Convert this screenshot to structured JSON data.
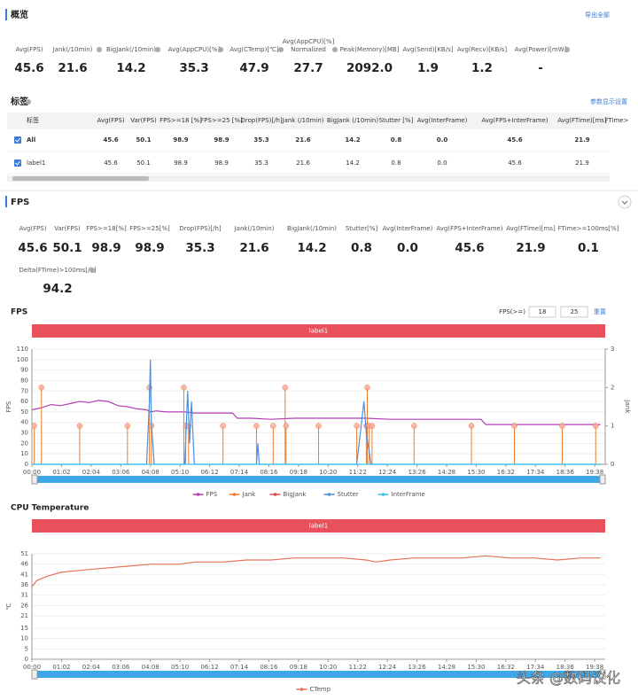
{
  "overview": {
    "title": "概览",
    "export": "导出全部",
    "metrics": [
      {
        "label": "Avg(FPS)",
        "value": "45.6"
      },
      {
        "label": "Jank(/10min)",
        "value": "21.6"
      },
      {
        "label": "BigJank(/10min)",
        "value": "14.2"
      },
      {
        "label": "Avg(AppCPU)[%]",
        "value": "35.3"
      },
      {
        "label": "Avg(CTemp)[℃]",
        "value": "47.9"
      },
      {
        "label": [
          "Avg(AppCPU)[%]",
          "Normalized"
        ],
        "value": "27.7"
      },
      {
        "label": "Peak(Memory)[MB]",
        "value": "2092.0"
      },
      {
        "label": "Avg(Send)[KB/s]",
        "value": "1.9"
      },
      {
        "label": "Avg(Recv)[KB/s]",
        "value": "1.2"
      },
      {
        "label": "Avg(Power)[mW]",
        "value": "-"
      }
    ]
  },
  "tags": {
    "title": "标签",
    "settings": "参数显示设置",
    "table": {
      "header": [
        "标签",
        "Avg(FPS)",
        "Var(FPS)",
        "FPS>=18 [%]",
        "FPS>=25 [%]",
        "Drop(FPS)[/h]",
        "Jank (/10min)",
        "BigJank (/10min)",
        "Stutter [%]",
        "Avg(InterFrame)",
        "Avg(FPS+InterFrame)",
        "Avg(FTime)[ms]",
        "FTime>"
      ],
      "rows": [
        [
          "All",
          "45.6",
          "50.1",
          "98.9",
          "98.9",
          "35.3",
          "21.6",
          "14.2",
          "0.8",
          "0.0",
          "45.6",
          "21.9"
        ],
        [
          "label1",
          "45.6",
          "50.1",
          "98.9",
          "98.9",
          "35.3",
          "21.6",
          "14.2",
          "0.8",
          "0.0",
          "45.6",
          "21.9"
        ]
      ]
    }
  },
  "fps": {
    "title": "FPS",
    "metrics": [
      {
        "label": "Avg(FPS)",
        "value": "45.6"
      },
      {
        "label": "Var(FPS)",
        "value": "50.1"
      },
      {
        "label": "FPS>=18[%]",
        "value": "98.9"
      },
      {
        "label": "FPS>=25[%]",
        "value": "98.9"
      },
      {
        "label": "Drop(FPS)[/h]",
        "value": "35.3"
      },
      {
        "label": "Jank(/10min)",
        "value": "21.6"
      },
      {
        "label": "BigJank(/10min)",
        "value": "14.2"
      },
      {
        "label": "Stutter[%]",
        "value": "0.8"
      },
      {
        "label": "Avg(InterFrame)",
        "value": "0.0"
      },
      {
        "label": "Avg(FPS+InterFrame)",
        "value": "45.6"
      },
      {
        "label": "Avg(FTime)[ms]",
        "value": "21.9"
      },
      {
        "label": "FTime>=100ms[%]",
        "value": "0.1"
      },
      {
        "label": "Delta(FTime)>100ms[/h]",
        "value": "94.2"
      }
    ],
    "filter": {
      "label": "FPS(>=)",
      "inputs": [
        "18",
        "25"
      ],
      "reset": "重置"
    }
  },
  "chart_data": [
    {
      "type": "line",
      "title": "FPS",
      "annotation": "label1",
      "ylabel": "FPS",
      "y2label": "Jank",
      "xlim": [
        0,
        1200
      ],
      "ylim": [
        0,
        110
      ],
      "y2lim": [
        0,
        3
      ],
      "xticks": [
        {
          "value": 0,
          "label": "00:00"
        },
        {
          "value": 62,
          "label": "01:02"
        },
        {
          "value": 124,
          "label": "02:04"
        },
        {
          "value": 186,
          "label": "03:06"
        },
        {
          "value": 248,
          "label": "04:08"
        },
        {
          "value": 310,
          "label": "05:10"
        },
        {
          "value": 372,
          "label": "06:12"
        },
        {
          "value": 434,
          "label": "07:14"
        },
        {
          "value": 496,
          "label": "08:16"
        },
        {
          "value": 558,
          "label": "09:18"
        },
        {
          "value": 620,
          "label": "10:20"
        },
        {
          "value": 682,
          "label": "11:22"
        },
        {
          "value": 744,
          "label": "12:24"
        },
        {
          "value": 806,
          "label": "13:26"
        },
        {
          "value": 868,
          "label": "14:28"
        },
        {
          "value": 930,
          "label": "15:30"
        },
        {
          "value": 992,
          "label": "16:32"
        },
        {
          "value": 1054,
          "label": "17:34"
        },
        {
          "value": 1116,
          "label": "18:36"
        },
        {
          "value": 1178,
          "label": "19:38"
        }
      ],
      "yticks": [
        0,
        10,
        20,
        30,
        40,
        50,
        60,
        70,
        80,
        90,
        100,
        110
      ],
      "y2ticks": [
        0,
        1,
        2,
        3
      ],
      "legend": "bottom",
      "series": [
        {
          "name": "FPS",
          "color": "#b03fb5",
          "style": "line",
          "x": [
            0,
            20,
            40,
            60,
            80,
            100,
            120,
            140,
            160,
            180,
            200,
            220,
            240,
            248,
            260,
            280,
            300,
            320,
            340,
            360,
            380,
            400,
            420,
            430,
            460,
            500,
            550,
            600,
            650,
            700,
            750,
            800,
            850,
            900,
            940,
            950,
            1000,
            1050,
            1100,
            1150,
            1190
          ],
          "values": [
            52,
            54,
            57,
            56,
            58,
            60,
            59,
            61,
            60,
            56,
            55,
            53,
            52,
            50,
            51,
            50,
            50,
            50,
            49,
            49,
            49,
            49,
            49,
            44,
            44,
            43,
            44,
            44,
            44,
            44,
            43,
            43,
            43,
            43,
            43,
            38,
            38,
            38,
            38,
            38,
            38
          ]
        },
        {
          "name": "Jank",
          "color": "#f07b2a",
          "style": "stem",
          "axis": "y2",
          "x": [
            5,
            20,
            100,
            200,
            246,
            250,
            318,
            322,
            328,
            400,
            470,
            505,
            530,
            532,
            600,
            680,
            700,
            702,
            706,
            712,
            800,
            920,
            1010,
            1110,
            1180
          ],
          "values": [
            1,
            2,
            1,
            1,
            2,
            1,
            2,
            1,
            1,
            1,
            1,
            1,
            2,
            1,
            1,
            1,
            1,
            2,
            1,
            1,
            1,
            1,
            1,
            1,
            1
          ]
        },
        {
          "name": "BigJank",
          "color": "#e0474c",
          "style": "stem",
          "axis": "y2",
          "x": [],
          "values": []
        },
        {
          "name": "Stutter",
          "color": "#4a8fe0",
          "style": "line",
          "x": [
            0,
            240,
            246,
            248,
            250,
            256,
            320,
            326,
            330,
            334,
            340,
            470,
            473,
            476,
            680,
            690,
            695,
            700,
            710,
            1190
          ],
          "values": [
            0,
            0,
            60,
            100,
            40,
            0,
            0,
            70,
            20,
            60,
            0,
            0,
            20,
            0,
            0,
            40,
            60,
            30,
            0,
            0
          ]
        },
        {
          "name": "InterFrame",
          "color": "#36c5f0",
          "style": "line",
          "x": [
            0,
            1190
          ],
          "values": [
            0,
            0
          ]
        }
      ]
    },
    {
      "type": "line",
      "title": "CPU Temperature",
      "annotation": "label1",
      "ylabel": "℃",
      "xlim": [
        0,
        1200
      ],
      "ylim": [
        0,
        51
      ],
      "xticks": [
        {
          "value": 0,
          "label": "00:00"
        },
        {
          "value": 62,
          "label": "01:02"
        },
        {
          "value": 124,
          "label": "02:04"
        },
        {
          "value": 186,
          "label": "03:06"
        },
        {
          "value": 248,
          "label": "04:08"
        },
        {
          "value": 310,
          "label": "05:10"
        },
        {
          "value": 372,
          "label": "06:12"
        },
        {
          "value": 434,
          "label": "07:14"
        },
        {
          "value": 496,
          "label": "08:16"
        },
        {
          "value": 558,
          "label": "09:18"
        },
        {
          "value": 620,
          "label": "10:20"
        },
        {
          "value": 682,
          "label": "11:22"
        },
        {
          "value": 744,
          "label": "12:24"
        },
        {
          "value": 806,
          "label": "13:26"
        },
        {
          "value": 868,
          "label": "14:28"
        },
        {
          "value": 930,
          "label": "15:30"
        },
        {
          "value": 992,
          "label": "16:32"
        },
        {
          "value": 1054,
          "label": "17:34"
        },
        {
          "value": 1116,
          "label": "18:36"
        },
        {
          "value": 1178,
          "label": "19:38"
        }
      ],
      "yticks": [
        0,
        5,
        10,
        15,
        21,
        26,
        31,
        36,
        41,
        46,
        51
      ],
      "legend": "bottom",
      "series": [
        {
          "name": "CTemp",
          "color": "#e8735a",
          "style": "line",
          "x": [
            0,
            10,
            30,
            60,
            100,
            150,
            200,
            250,
            310,
            340,
            400,
            450,
            500,
            550,
            600,
            650,
            700,
            720,
            750,
            800,
            900,
            950,
            1000,
            1050,
            1100,
            1150,
            1190
          ],
          "values": [
            35,
            38,
            40,
            42,
            43,
            44,
            45,
            46,
            46,
            47,
            47,
            48,
            48,
            49,
            49,
            49,
            48,
            47,
            48,
            49,
            49,
            50,
            49,
            49,
            48,
            49,
            49
          ]
        }
      ]
    }
  ],
  "watermark": "头条 @数码议化"
}
